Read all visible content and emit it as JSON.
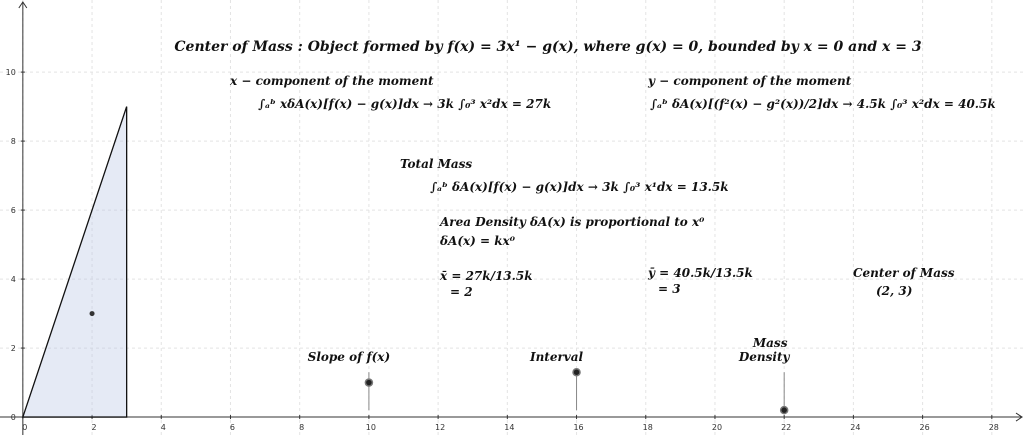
{
  "title": "Center of Mass : Object formed by f(x) = 3x¹ − g(x),  where g(x) = 0,  bounded by x = 0 and x = 3",
  "texts": [
    "x − component of the moment",
    "∫ₐᵇ xδA(x)[f(x) − g(x)]dx → 3k ∫₀³ x²dx =  27k",
    "y − component of the moment",
    "∫ₐᵇ δA(x)[(f²(x) − g²(x))/2]dx → 4.5k ∫₀³ x²dx =  40.5k",
    "Total Mass",
    "∫ₐᵇ δA(x)[f(x) − g(x)]dx   →   3k ∫₀³ x¹dx  =  13.5k",
    "Area Density  δA(x)  is proportional to x⁰",
    "δA(x) = kx⁰",
    "x̄ = 27k/13.5k",
    "= 2",
    "ȳ = 40.5k/13.5k",
    "= 3",
    "Center of Mass",
    "(2, 3)"
  ],
  "axes": {
    "xlim": [
      -0.66,
      28.93
    ],
    "ylim": [
      -0.52,
      12.09
    ],
    "xticks": [
      0,
      2,
      4,
      6,
      8,
      10,
      12,
      14,
      16,
      18,
      20,
      22,
      24,
      26,
      28
    ],
    "yticks": [
      0,
      2,
      4,
      6,
      8,
      10
    ]
  },
  "region": [
    [
      0,
      0
    ],
    [
      3,
      9
    ],
    [
      3,
      0
    ]
  ],
  "point": [
    2,
    3
  ],
  "sliders": [
    {
      "label": [
        "Slope of f(x)"
      ],
      "x": 10,
      "value": 1
    },
    {
      "label": [
        "Interval"
      ],
      "x": 16,
      "value": 1.3
    },
    {
      "label": [
        "Mass",
        "Density"
      ],
      "x": 22,
      "value": 0.2
    }
  ]
}
